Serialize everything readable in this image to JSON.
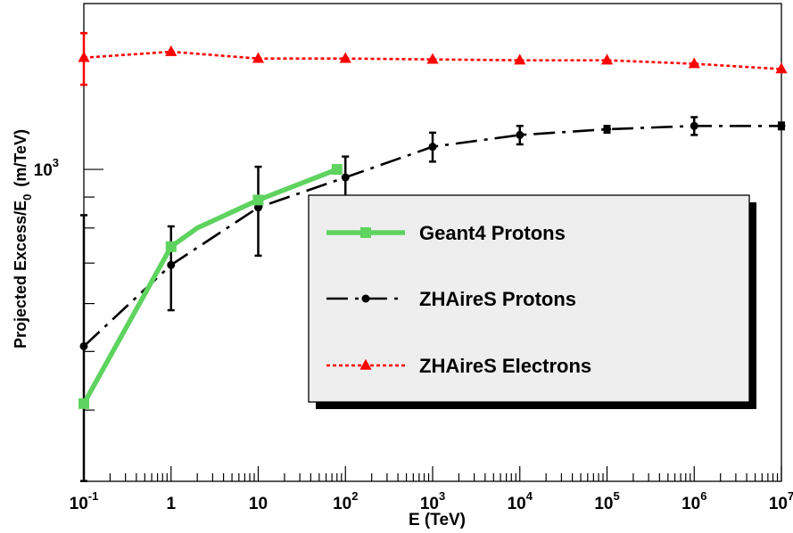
{
  "chart_data": {
    "type": "line",
    "title": "",
    "xlabel": "E (TeV)",
    "ylabel": "Projected Excess/E",
    "ylabel_sub": "0",
    "ylabel_unit": "(m/TeV)",
    "x_scale": "log",
    "y_scale": "log",
    "xlim": [
      0.1,
      10000000
    ],
    "ylim": [
      305,
      1880
    ],
    "grid": false,
    "legend_position": "center-right",
    "x_ticks": [
      {
        "value": 0.1,
        "base": "10",
        "exp": "-1"
      },
      {
        "value": 1,
        "base": "1",
        "exp": ""
      },
      {
        "value": 10,
        "base": "10",
        "exp": ""
      },
      {
        "value": 100,
        "base": "10",
        "exp": "2"
      },
      {
        "value": 1000,
        "base": "10",
        "exp": "3"
      },
      {
        "value": 10000,
        "base": "10",
        "exp": "4"
      },
      {
        "value": 100000,
        "base": "10",
        "exp": "5"
      },
      {
        "value": 1000000,
        "base": "10",
        "exp": "6"
      },
      {
        "value": 10000000,
        "base": "10",
        "exp": "7"
      }
    ],
    "y_ticks": [
      {
        "value": 1000,
        "base": "10",
        "exp": "3"
      }
    ],
    "series": [
      {
        "name": "Geant4 Protons",
        "color": "#5fd35f",
        "line_style": "solid",
        "marker": "square",
        "x": [
          0.1,
          0.3,
          1,
          2,
          10,
          80
        ],
        "y": [
          410,
          545,
          745,
          800,
          890,
          1000
        ],
        "marker_points": [
          0,
          2,
          4,
          5
        ],
        "y_err": [
          0,
          0,
          0,
          0,
          0,
          0
        ]
      },
      {
        "name": "ZHAireS Protons",
        "color": "#000000",
        "line_style": "dashdot",
        "marker": "circle",
        "x": [
          0.1,
          1,
          10,
          100,
          1000,
          10000,
          100000,
          1000000,
          10000000
        ],
        "y": [
          510,
          695,
          865,
          970,
          1090,
          1140,
          1165,
          1180,
          1180
        ],
        "marker_points": [
          0,
          1,
          2,
          3,
          4,
          5,
          6,
          7,
          8
        ],
        "y_err": [
          330,
          110,
          145,
          80,
          60,
          40,
          15,
          40,
          15
        ]
      },
      {
        "name": "ZHAireS Electrons",
        "color": "#ff0000",
        "line_style": "dotted",
        "marker": "triangle",
        "x": [
          0.1,
          1,
          10,
          100,
          1000,
          10000,
          100000,
          1000000,
          10000000
        ],
        "y": [
          1530,
          1565,
          1525,
          1525,
          1520,
          1515,
          1515,
          1495,
          1465
        ],
        "marker_points": [
          0,
          1,
          2,
          3,
          4,
          5,
          6,
          7,
          8
        ],
        "y_err": [
          150,
          0,
          0,
          0,
          0,
          0,
          0,
          0,
          0
        ]
      }
    ]
  }
}
